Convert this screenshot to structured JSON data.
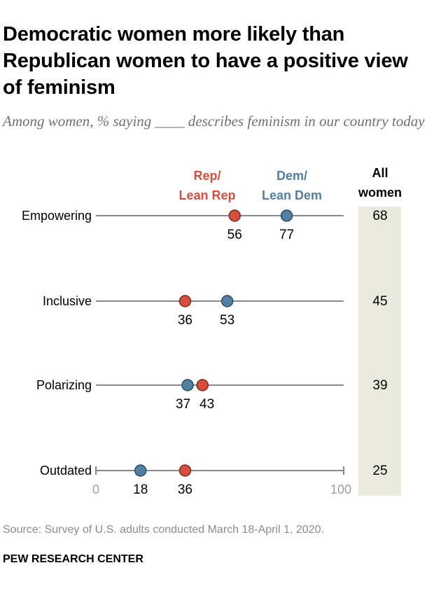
{
  "title": "Democratic women more likely than Republican women to have a positive view of feminism",
  "subtitle": "Among women, % saying ____ describes feminism in our country today",
  "source": "Source: Survey of U.S. adults conducted March 18-April 1, 2020.",
  "org": "PEW RESEARCH CENTER",
  "colors": {
    "rep": "#d64f3c",
    "dem": "#537fa0",
    "line": "#8a8a8a",
    "column_bg": "#ebeadf"
  },
  "chart_data": {
    "type": "dot_plot",
    "xlim": [
      0,
      100
    ],
    "x_ticks": [
      "0",
      "100"
    ],
    "legend": {
      "rep": [
        "Rep/",
        "Lean Rep"
      ],
      "dem": [
        "Dem/",
        "Lean Dem"
      ],
      "all": [
        "All",
        "women"
      ]
    },
    "categories": [
      "Empowering",
      "Inclusive",
      "Polarizing",
      "Outdated"
    ],
    "series": [
      {
        "name": "Rep/Lean Rep",
        "key": "rep",
        "values": [
          56,
          36,
          43,
          36
        ]
      },
      {
        "name": "Dem/Lean Dem",
        "key": "dem",
        "values": [
          77,
          53,
          37,
          18
        ]
      }
    ],
    "all_women": [
      68,
      45,
      39,
      25
    ]
  }
}
